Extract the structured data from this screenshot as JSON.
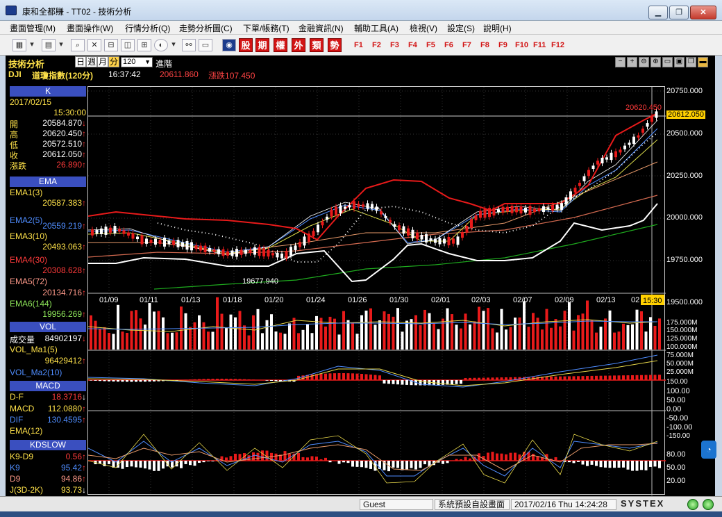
{
  "window": {
    "title": "康和全都賺 - TT02 - 技術分析"
  },
  "menu": [
    "畫面管理(M)",
    "畫面操作(W)",
    "行情分析(Q)",
    "走勢分析圖(C)",
    "下單/帳務(T)",
    "金融資訊(N)",
    "輔助工具(A)",
    "檢視(V)",
    "設定(S)",
    "說明(H)"
  ],
  "toolbar": {
    "red_buttons": [
      "股",
      "期",
      "權",
      "外",
      "類",
      "勢"
    ],
    "fkeys": [
      "F1",
      "F2",
      "F3",
      "F4",
      "F5",
      "F6",
      "F7",
      "F8",
      "F9",
      "F10",
      "F11",
      "F12"
    ]
  },
  "header": {
    "title": "技術分析",
    "periods": [
      "日",
      "週",
      "月",
      "分"
    ],
    "active_period": "分",
    "period_value": "120",
    "advanced": "進階"
  },
  "symbol": {
    "code": "DJI",
    "name": "道瓊指數(120分)",
    "time": "16:37:42",
    "price": "20611.860",
    "change_label": "漲跌",
    "change": "107.450"
  },
  "k_panel": {
    "title": "K",
    "date": "2017/02/15",
    "time": "15:30:00",
    "rows": [
      {
        "label": "開",
        "value": "20584.870",
        "arrow": "↓"
      },
      {
        "label": "高",
        "value": "20620.450",
        "arrow": "↑"
      },
      {
        "label": "低",
        "value": "20572.510",
        "arrow": "↑"
      },
      {
        "label": "收",
        "value": "20612.050",
        "arrow": "↑"
      },
      {
        "label": "漲跌",
        "value": "26.890",
        "arrow": "↑"
      }
    ]
  },
  "ema_panel": {
    "title": "EMA",
    "rows": [
      {
        "label": "EMA1(3)",
        "value": "20587.383",
        "arrow": "↑"
      },
      {
        "label": "EMA2(5)",
        "value": "20559.219",
        "arrow": "↑"
      },
      {
        "label": "EMA3(10)",
        "value": "20493.063",
        "arrow": "↑"
      },
      {
        "label": "EMA4(30)",
        "value": "20308.628",
        "arrow": "↑"
      },
      {
        "label": "EMA5(72)",
        "value": "20134.716",
        "arrow": "↑"
      },
      {
        "label": "EMA6(144)",
        "value": "19956.269",
        "arrow": "↑"
      }
    ]
  },
  "vol_panel": {
    "title": "VOL",
    "rows": [
      {
        "label": "成交量",
        "value": "84902197",
        "arrow": "↓"
      },
      {
        "label": "VOL_Ma1(5)",
        "value": "",
        "arrow": ""
      },
      {
        "label": "",
        "value": "96429412",
        "arrow": "↑"
      },
      {
        "label": "VOL_Ma2(10)",
        "value": "",
        "arrow": ""
      }
    ]
  },
  "macd_panel": {
    "title": "MACD",
    "rows": [
      {
        "label": "D-F",
        "value": "18.3716",
        "arrow": "↓"
      },
      {
        "label": "MACD",
        "value": "112.0880",
        "arrow": "↑"
      },
      {
        "label": "DIF",
        "value": "130.4595",
        "arrow": "↑"
      },
      {
        "label": "EMA(12)",
        "value": "",
        "arrow": ""
      }
    ]
  },
  "kd_panel": {
    "title": "KDSLOW",
    "rows": [
      {
        "label": "K9-D9",
        "value": "0.56",
        "arrow": "↑"
      },
      {
        "label": "K9",
        "value": "95.42",
        "arrow": "↑"
      },
      {
        "label": "D9",
        "value": "94.86",
        "arrow": "↑"
      },
      {
        "label": "J(3D-2K)",
        "value": "93.73",
        "arrow": "↓"
      }
    ]
  },
  "axes": {
    "price_ticks": [
      "20750.000",
      "20500.000",
      "20250.000",
      "20000.000",
      "19750.000",
      "19500.000"
    ],
    "current_price": "20612.050",
    "high_label": "20620.450",
    "low_label": "19677.940",
    "dates": [
      "01/09",
      "01/11",
      "01/13",
      "01/18",
      "01/20",
      "01/24",
      "01/26",
      "01/30",
      "02/01",
      "02/03",
      "02/07",
      "02/09",
      "02/13",
      "02"
    ],
    "cursor_time": "15:30",
    "vol_ticks": [
      "175.000M",
      "150.000M",
      "125.000M",
      "100.000M",
      "75.000M",
      "50.000M",
      "25.000M"
    ],
    "macd_ticks": [
      "150.00",
      "100.00",
      "50.00",
      "0.00",
      "-50.00",
      "-100.00",
      "-150.00"
    ],
    "kd_ticks": [
      "80.00",
      "50.00",
      "20.00"
    ]
  },
  "status": {
    "user": "Guest",
    "screen": "系統預設自設畫面",
    "datetime": "2017/02/16 Thu 14:24:28",
    "brand": "SYSTEX"
  }
}
